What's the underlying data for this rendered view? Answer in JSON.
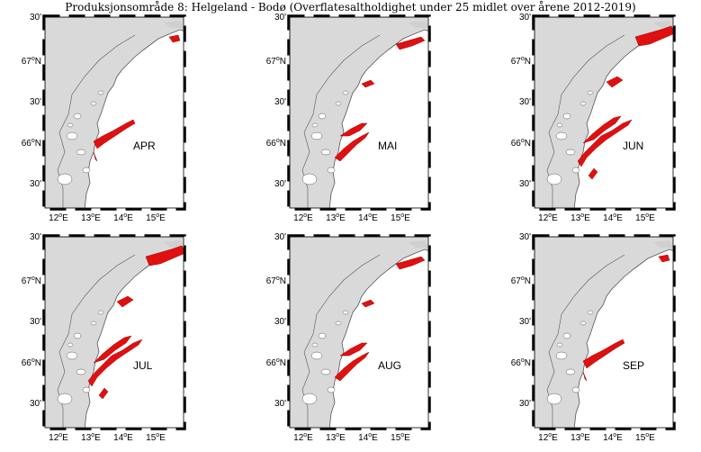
{
  "title": "Produksjonsområde 8: Helgeland - Bodø (Overflatesaltholdighet under 25 midlet over årene 2012-2019)",
  "lat_labels": {
    "top_minute": "30'",
    "n67": "67",
    "mid_minute": "30'",
    "n66": "66",
    "bottom_minute": "30'",
    "degree_sign": "o",
    "suffix": "N"
  },
  "lon_labels": [
    {
      "deg": "12",
      "suffix": "E"
    },
    {
      "deg": "13",
      "suffix": "E"
    },
    {
      "deg": "14",
      "suffix": "E"
    },
    {
      "deg": "15",
      "suffix": "E"
    }
  ],
  "panels": [
    {
      "month": "APR",
      "extent": "small"
    },
    {
      "month": "MAI",
      "extent": "medium"
    },
    {
      "month": "JUN",
      "extent": "large"
    },
    {
      "month": "JUL",
      "extent": "large"
    },
    {
      "month": "AUG",
      "extent": "medium"
    },
    {
      "month": "SEP",
      "extent": "small"
    }
  ],
  "colors": {
    "land": "#d9d9d9",
    "sea": "#ffffff",
    "low_salinity": "#e01010",
    "coastline": "#555555",
    "frame": "#000000"
  }
}
